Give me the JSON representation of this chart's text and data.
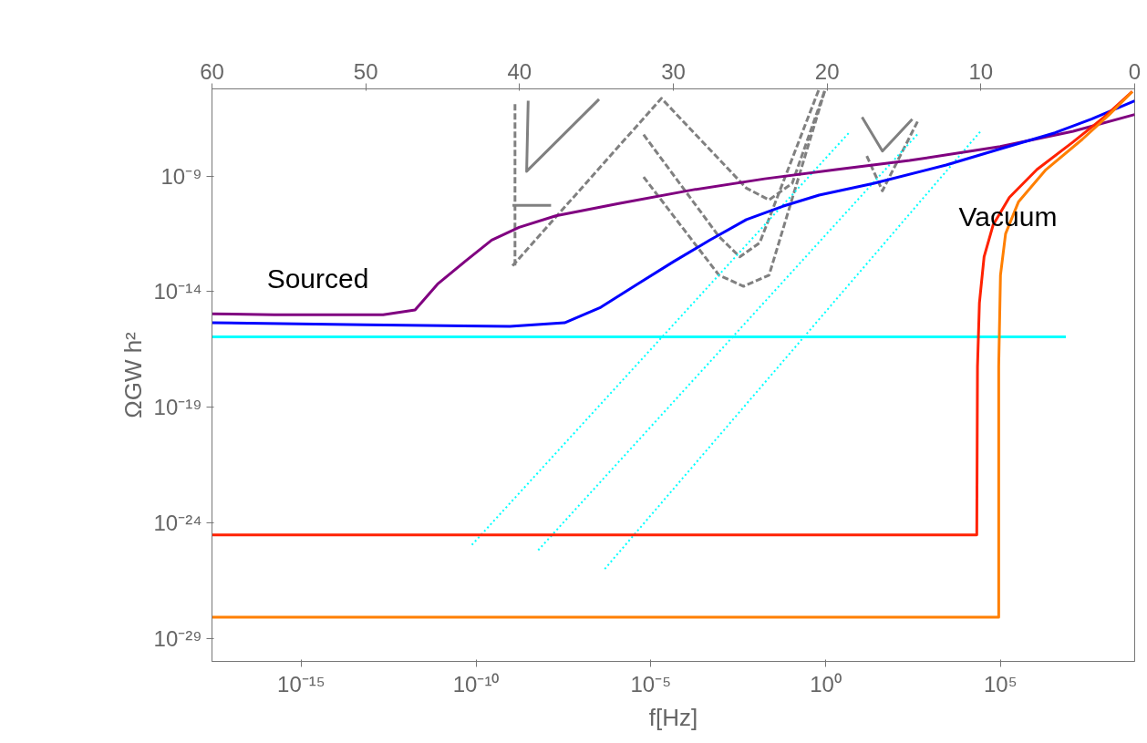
{
  "chart_data": {
    "type": "line",
    "xlabel": "f[Hz]",
    "ylabel": "ΩGW h²",
    "log": "xy",
    "grid": false,
    "xlim": [
      2.8e-18,
      690000000.0
    ],
    "ylim": [
      1e-30,
      5.9e-06
    ],
    "xticks": [
      {
        "value": 1e-15,
        "label": "10⁻¹⁵"
      },
      {
        "value": 1e-10,
        "label": "10⁻¹⁰"
      },
      {
        "value": 1e-05,
        "label": "10⁻⁵"
      },
      {
        "value": 1,
        "label": "10⁰"
      },
      {
        "value": 100000.0,
        "label": "10⁵"
      }
    ],
    "yticks": [
      {
        "value": 1e-09,
        "label": "10⁻⁹"
      },
      {
        "value": 1e-14,
        "label": "10⁻¹⁴"
      },
      {
        "value": 1e-19,
        "label": "10⁻¹⁹"
      },
      {
        "value": 1e-24,
        "label": "10⁻²⁴"
      },
      {
        "value": 1e-29,
        "label": "10⁻²⁹"
      }
    ],
    "x2lim": [
      60,
      0
    ],
    "x2ticks": [
      60,
      50,
      40,
      30,
      20,
      10,
      0
    ],
    "annotations": [
      "Sourced",
      "Vacuum"
    ],
    "series": [
      {
        "color": "#808080",
        "line_style": "dashed",
        "x": [
          1.3e-09,
          1.3e-09
        ],
        "values": [
          1.3e-06,
          1.3e-13
        ]
      },
      {
        "color": "#808080",
        "line_style": "solid",
        "x": [
          1.1e-09,
          1.4e-08
        ],
        "values": [
          5.4e-11,
          5.4e-11
        ]
      },
      {
        "color": "#808080",
        "line_style": "solid",
        "x": [
          3.1e-09,
          2.8e-09,
          3.3e-07
        ],
        "values": [
          1.8e-06,
          1.6e-09,
          2.1e-06
        ]
      },
      {
        "color": "#808080",
        "line_style": "dashed",
        "x": [
          1.1e-09,
          2e-05,
          0.0054,
          0.024,
          0.11,
          0.98
        ],
        "values": [
          1.3e-13,
          2.3e-06,
          3e-10,
          9.3e-11,
          4.8e-10,
          5.9e-06
        ]
      },
      {
        "color": "#808080",
        "line_style": "dashed",
        "x": [
          6.2e-06,
          0.00089,
          0.0035,
          0.013,
          0.65
        ],
        "values": [
          6.2e-08,
          2.4e-12,
          3.2e-13,
          1.3e-12,
          5.9e-06
        ]
      },
      {
        "color": "#808080",
        "line_style": "dashed",
        "x": [
          6.2e-06,
          0.00089,
          0.0045,
          0.024,
          0.98
        ],
        "values": [
          9.1e-10,
          5.1e-14,
          1.7e-14,
          5.1e-14,
          5.9e-06
        ]
      },
      {
        "color": "#808080",
        "line_style": "solid",
        "x": [
          11,
          42,
          300
        ],
        "values": [
          3.5e-07,
          1.2e-08,
          2.9e-07
        ]
      },
      {
        "color": "#808080",
        "line_style": "dashed",
        "x": [
          15,
          42,
          460
        ],
        "values": [
          7.4e-09,
          2.3e-10,
          2.9e-07
        ]
      },
      {
        "color": "#00ffff",
        "line_style": "dotted",
        "x": [
          7.6e-11,
          5.1
        ],
        "values": [
          1.1e-25,
          8.7e-08
        ]
      },
      {
        "color": "#00ffff",
        "line_style": "dotted",
        "x": [
          6e-09,
          460
        ],
        "values": [
          6.5e-26,
          7.4e-08
        ]
      },
      {
        "color": "#00ffff",
        "line_style": "dotted",
        "x": [
          4.8e-07,
          27000.0
        ],
        "values": [
          1e-26,
          8.7e-08
        ]
      },
      {
        "color": "#00ffff",
        "line_style": "solid",
        "x": [
          2.8e-18,
          7400000.0
        ],
        "values": [
          1.1e-16,
          1.1e-16
        ]
      },
      {
        "color": "#800080",
        "line_style": "solid",
        "x": [
          2.8e-18,
          1.7e-16,
          2.2e-13,
          1.8e-12,
          7.9e-12,
          4.8e-11,
          2.8e-10,
          1.7e-09,
          1.9e-08,
          1.2e-06,
          0.00015,
          0.018,
          2.0,
          250,
          98000.0,
          12000000.0,
          690000000.0
        ],
        "values": [
          1.1e-15,
          1e-15,
          1e-15,
          1.6e-15,
          2.1e-14,
          2e-13,
          1.7e-12,
          6e-12,
          1.9e-11,
          6.5e-11,
          2.5e-10,
          7.6e-10,
          1.9e-09,
          4.7e-09,
          1.9e-08,
          8.7e-08,
          4.6e-07
        ]
      },
      {
        "color": "#0000ff",
        "line_style": "solid",
        "x": [
          2.8e-18,
          6.6e-14,
          9.3e-10,
          3.4e-08,
          3.7e-07,
          4.1e-06,
          4.5e-05,
          0.00049,
          0.0054,
          0.059,
          0.65,
          23,
          2800.0,
          100000.0,
          3600000.0,
          40000000.0,
          690000000.0
        ],
        "values": [
          4.5e-16,
          3.7e-16,
          3.1e-16,
          4.5e-16,
          2.1e-15,
          2.1e-14,
          2e-13,
          1.7e-12,
          1.3e-11,
          4.9e-11,
          1.5e-10,
          4.8e-10,
          3e-09,
          1.5e-08,
          7.4e-08,
          2.9e-07,
          1.8e-06
        ]
      },
      {
        "color": "#ff2200",
        "line_style": "solid",
        "x": [
          2.8e-18,
          21000.0,
          22000.0,
          25000.0,
          34000.0,
          62000.0,
          180000.0,
          1100000.0,
          12000000.0,
          98000000.0,
          590000000.0
        ],
        "values": [
          3e-25,
          3e-25,
          5.6e-18,
          3.3e-15,
          3.2e-13,
          7.9e-12,
          1.2e-10,
          1.9e-09,
          3e-08,
          3.8e-07,
          4.5e-06
        ]
      },
      {
        "color": "#ff7f00",
        "line_style": "solid",
        "x": [
          2.8e-18,
          89000.0,
          89000.0,
          100000.0,
          140000.0,
          330000.0,
          2000000.0,
          22000000.0,
          130000000.0,
          590000000.0
        ],
        "values": [
          8.1e-29,
          8.1e-29,
          5.6e-18,
          5.1e-14,
          3.2e-12,
          7.8e-11,
          1.9e-09,
          3.9e-08,
          4.6e-07,
          4.5e-06
        ]
      }
    ]
  }
}
